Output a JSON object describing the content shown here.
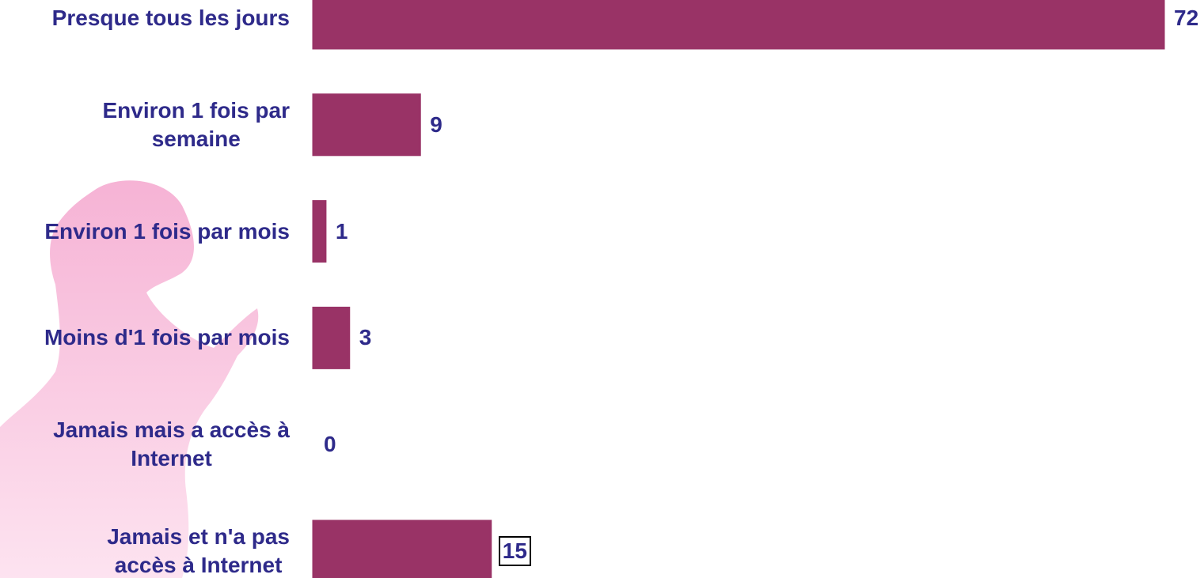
{
  "chart_data": {
    "type": "barh",
    "categories": [
      "Presque tous les jours",
      "Environ 1 fois par\nsemaine",
      "Environ 1 fois par mois",
      "Moins d'1 fois par mois",
      "Jamais mais a accès à\nInternet",
      "Jamais et n'a pas\naccès à Internet"
    ],
    "values": [
      72,
      9,
      1,
      3,
      0,
      15
    ],
    "color": "#993366"
  }
}
